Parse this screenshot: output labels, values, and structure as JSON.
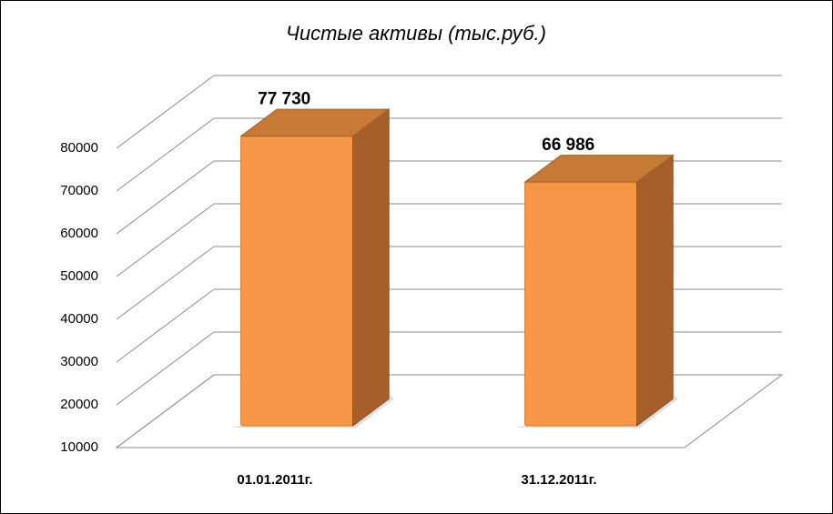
{
  "chart_data": {
    "type": "bar3d",
    "title": "Чистые активы  (тыс.руб.)",
    "categories": [
      "01.01.2011г.",
      "31.12.2011г."
    ],
    "values": [
      77730,
      66986
    ],
    "value_labels": [
      "77 730",
      "66 986"
    ],
    "color": "#f79646",
    "ylim": [
      10000,
      80000
    ],
    "yticks": [
      10000,
      20000,
      30000,
      40000,
      50000,
      60000,
      70000,
      80000
    ],
    "grid": true
  }
}
